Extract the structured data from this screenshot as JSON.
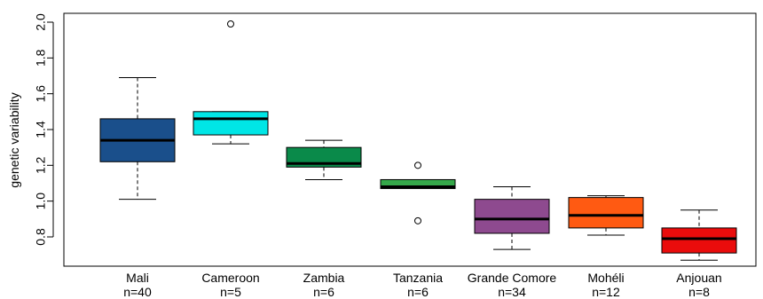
{
  "chart_data": {
    "type": "boxplot",
    "title": "",
    "xlabel": "",
    "ylabel": "genetic variability",
    "ylim": [
      0.7,
      2.05
    ],
    "yticks": [
      0.8,
      1.0,
      1.2,
      1.4,
      1.6,
      1.8,
      2.0
    ],
    "ytick_labels": [
      "0.8",
      "1.0",
      "1.2",
      "1.4",
      "1.6",
      "1.8",
      "2.0"
    ],
    "categories": [
      {
        "name": "Mali",
        "n_label": "n=40",
        "color": "#1a4f8b",
        "whisker_low": 1.01,
        "q1": 1.22,
        "median": 1.34,
        "q3": 1.46,
        "whisker_high": 1.69,
        "outliers": []
      },
      {
        "name": "Cameroon",
        "n_label": "n=5",
        "color": "#00e6e6",
        "whisker_low": 1.32,
        "q1": 1.37,
        "median": 1.46,
        "q3": 1.5,
        "whisker_high": 1.5,
        "outliers": [
          1.99
        ]
      },
      {
        "name": "Zambia",
        "n_label": "n=6",
        "color": "#0a8a4a",
        "whisker_low": 1.12,
        "q1": 1.19,
        "median": 1.21,
        "q3": 1.3,
        "whisker_high": 1.34,
        "outliers": []
      },
      {
        "name": "Tanzania",
        "n_label": "n=6",
        "color": "#35a84a",
        "whisker_low": 1.07,
        "q1": 1.07,
        "median": 1.08,
        "q3": 1.12,
        "whisker_high": 1.12,
        "outliers": [
          1.2,
          0.89
        ]
      },
      {
        "name": "Grande Comore",
        "n_label": "n=34",
        "color": "#8e4a8f",
        "whisker_low": 0.73,
        "q1": 0.82,
        "median": 0.9,
        "q3": 1.01,
        "whisker_high": 1.08,
        "outliers": []
      },
      {
        "name": "Mohéli",
        "n_label": "n=12",
        "color": "#ff5a12",
        "whisker_low": 0.81,
        "q1": 0.85,
        "median": 0.92,
        "q3": 1.02,
        "whisker_high": 1.03,
        "outliers": []
      },
      {
        "name": "Anjouan",
        "n_label": "n=8",
        "color": "#ea0c0c",
        "whisker_low": 0.67,
        "q1": 0.71,
        "median": 0.79,
        "q3": 0.85,
        "whisker_high": 0.95,
        "outliers": []
      }
    ]
  }
}
